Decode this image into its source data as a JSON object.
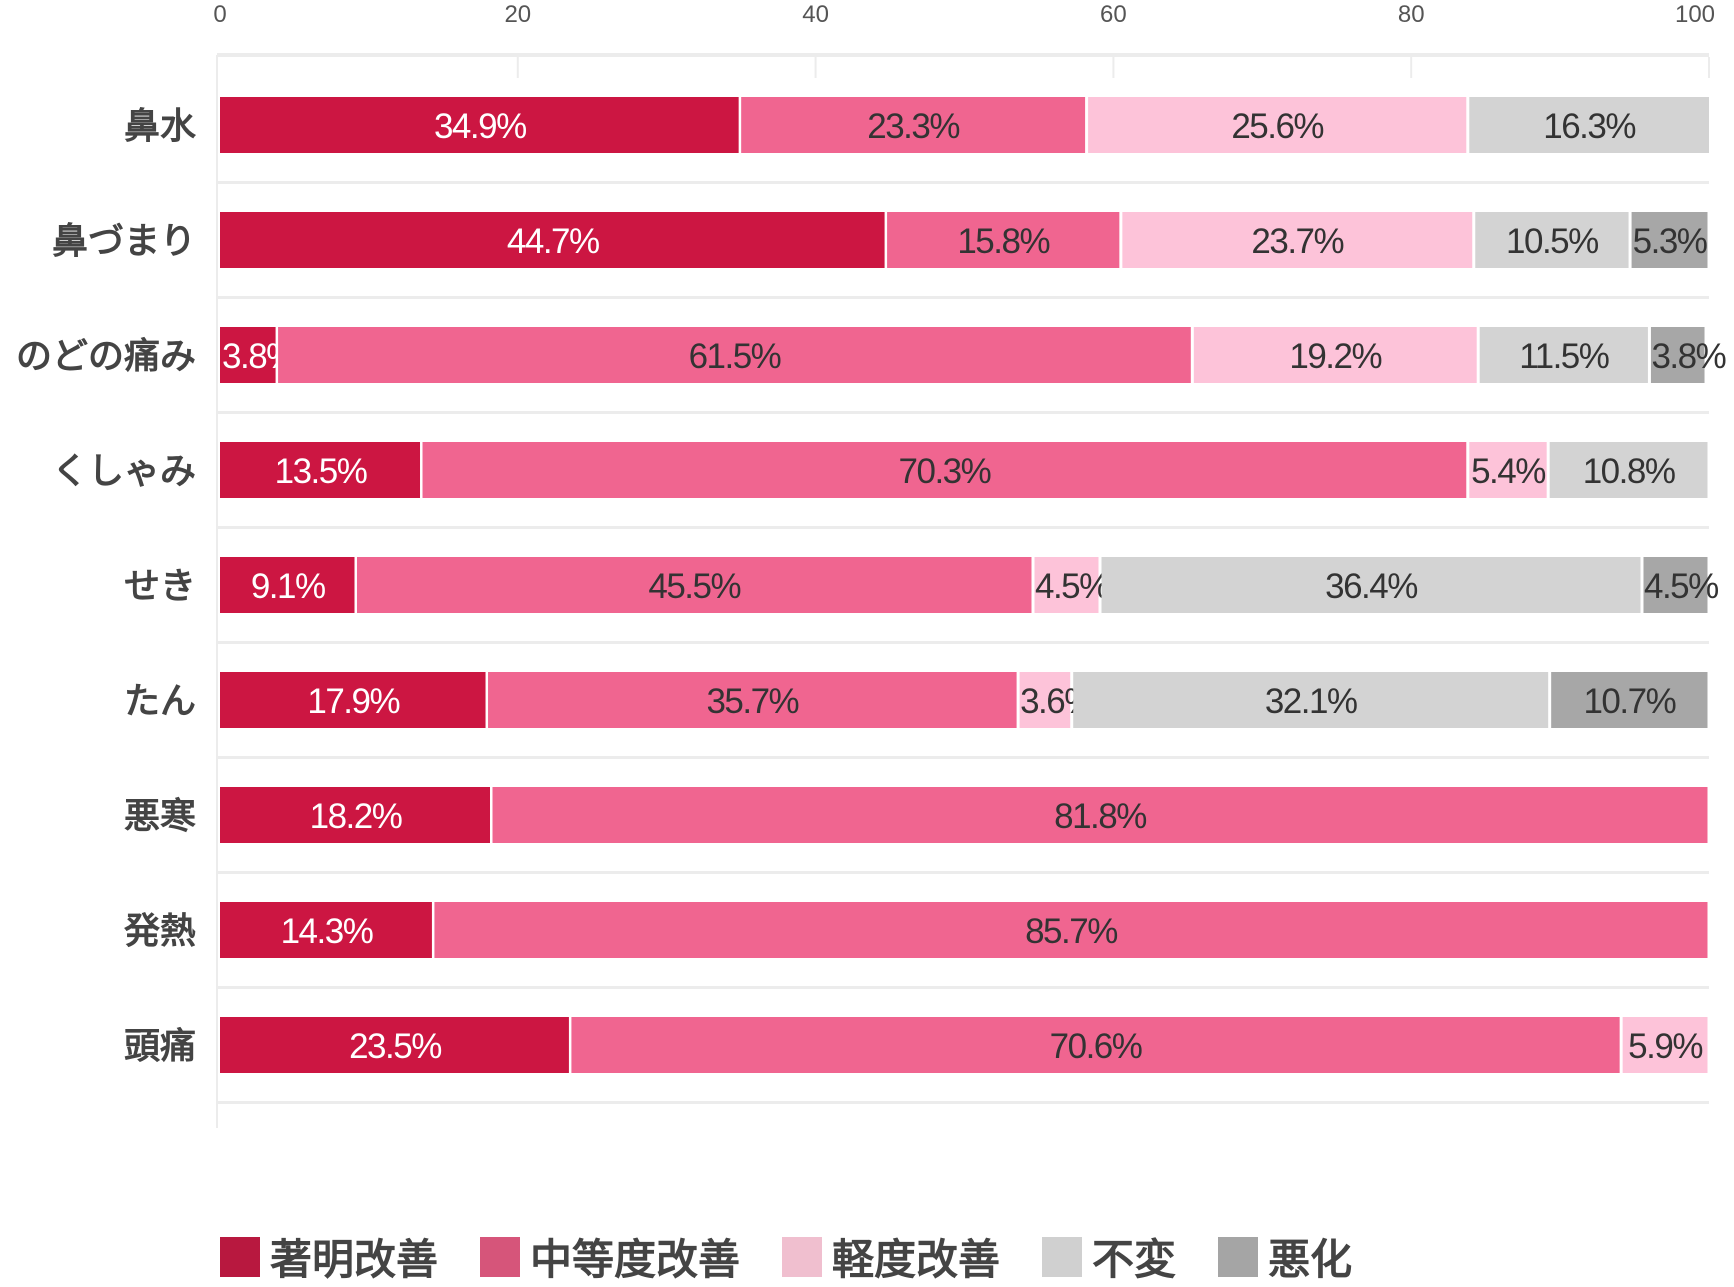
{
  "chart_data": {
    "type": "bar",
    "orientation": "horizontal",
    "stacked": true,
    "title": "",
    "xlabel": "",
    "ylabel": "",
    "xlim": [
      0,
      100
    ],
    "xticks": [
      "0",
      "20",
      "40",
      "60",
      "80",
      "100"
    ],
    "legend_position": "bottom",
    "categories": [
      "鼻水",
      "鼻づまり",
      "のどの痛み",
      "くしゃみ",
      "せき",
      "たん",
      "悪寒",
      "発熱",
      "頭痛"
    ],
    "series": [
      {
        "name": "著明改善",
        "color": "#cc1642",
        "legend_color": "#b8183f",
        "label_color": "#ffffff",
        "values": [
          34.9,
          44.7,
          3.8,
          13.5,
          9.1,
          17.9,
          18.2,
          14.3,
          23.5
        ]
      },
      {
        "name": "中等度改善",
        "color": "#f06590",
        "legend_color": "#d6557a",
        "label_color": "#333333",
        "values": [
          23.3,
          15.8,
          61.5,
          70.3,
          45.5,
          35.7,
          81.8,
          85.7,
          70.6
        ]
      },
      {
        "name": "軽度改善",
        "color": "#fdc3d9",
        "legend_color": "#f0bfcf",
        "label_color": "#333333",
        "values": [
          25.6,
          23.7,
          19.2,
          5.4,
          4.5,
          3.6,
          0,
          0,
          5.9
        ]
      },
      {
        "name": "不変",
        "color": "#d3d3d3",
        "legend_color": "#d0d0d0",
        "label_color": "#333333",
        "values": [
          16.3,
          10.5,
          11.5,
          10.8,
          36.4,
          32.1,
          0,
          0,
          0
        ]
      },
      {
        "name": "悪化",
        "color": "#a7a7a7",
        "legend_color": "#a5a5a5",
        "label_color": "#333333",
        "values": [
          0,
          5.3,
          3.8,
          0,
          4.5,
          10.7,
          0,
          0,
          0
        ]
      }
    ]
  }
}
